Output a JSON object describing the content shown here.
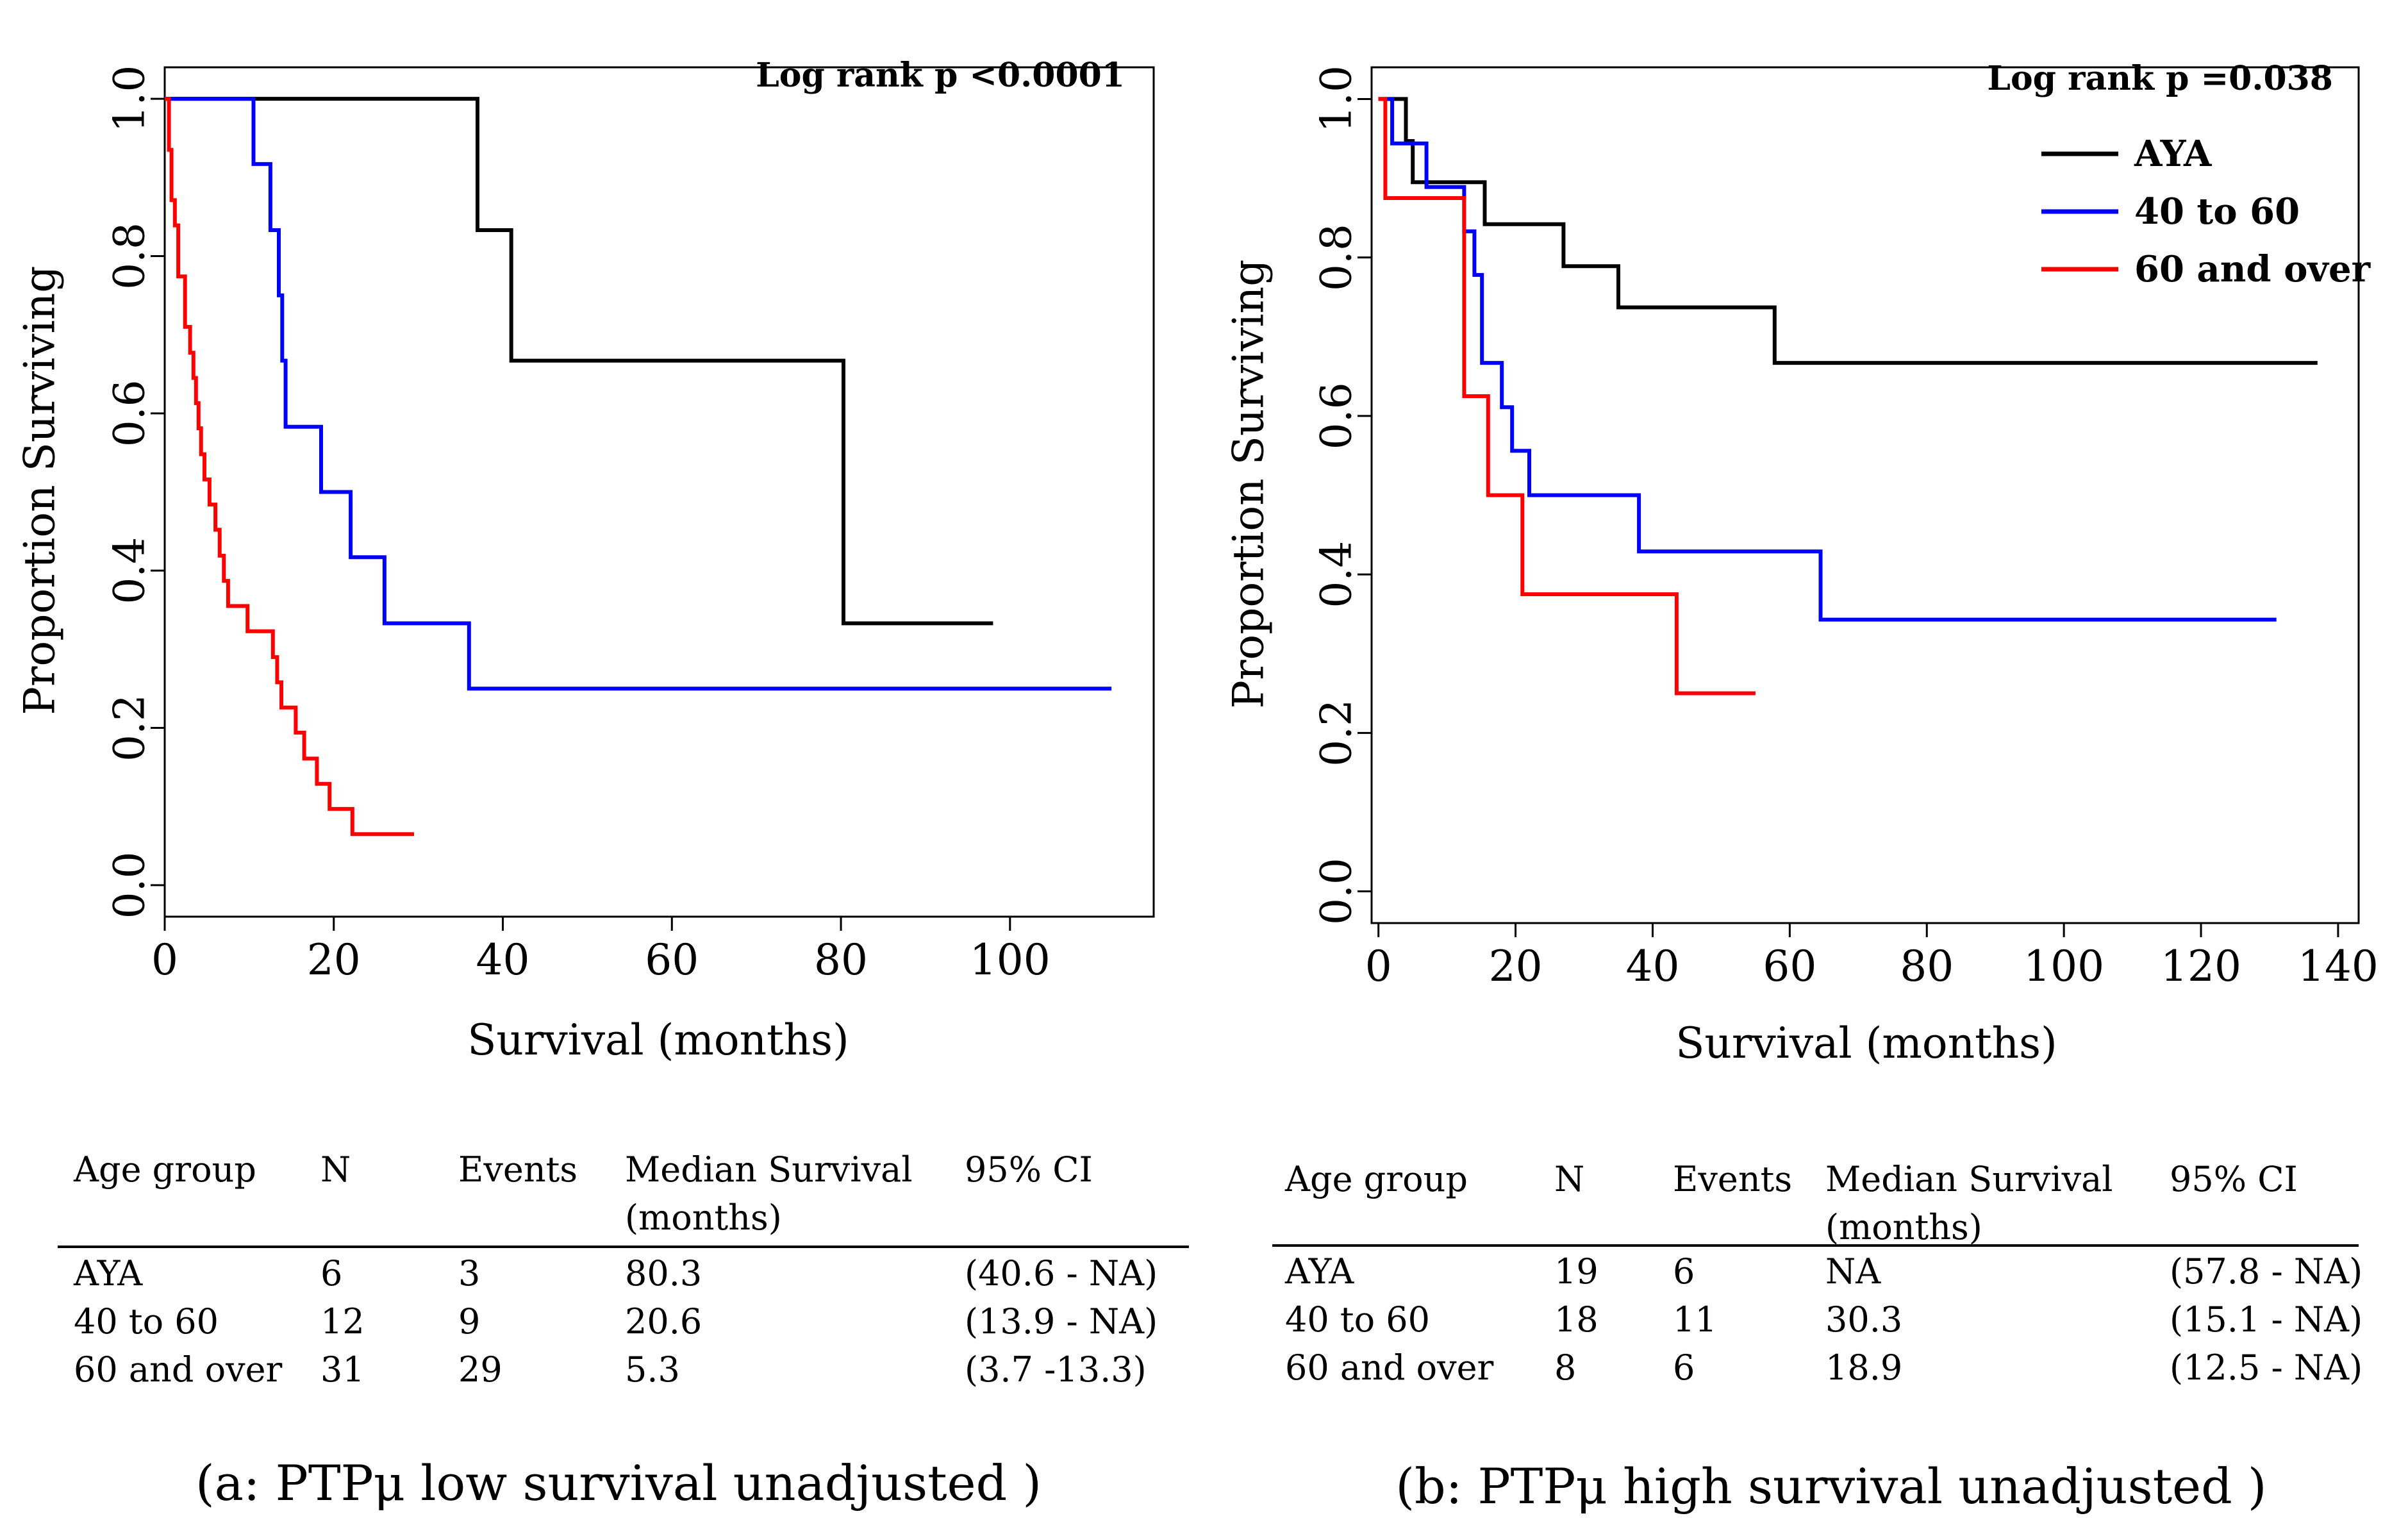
{
  "chart_data": [
    {
      "type": "line",
      "subtype": "kaplan-meier",
      "caption": "(a: PTPμ low survival unadjusted )",
      "xlabel": "Survival (months)",
      "ylabel": "Proportion Surviving",
      "xlim": [
        0,
        117
      ],
      "ylim": [
        -0.04,
        1.04
      ],
      "xticks": [
        0,
        20,
        40,
        60,
        80,
        100
      ],
      "xtick_labels": [
        "0",
        "20",
        "40",
        "60",
        "80",
        "100"
      ],
      "yticks": [
        0.0,
        0.2,
        0.4,
        0.6,
        0.8,
        1.0
      ],
      "ytick_labels": [
        "0.0",
        "0.2",
        "0.4",
        "0.6",
        "0.8",
        "1.0"
      ],
      "annotation": "Log rank p <0.0001",
      "series": [
        {
          "name": "AYA",
          "color": "#000000",
          "points": [
            [
              0,
              1.0
            ],
            [
              37,
              1.0
            ],
            [
              37,
              0.833
            ],
            [
              41,
              0.833
            ],
            [
              41,
              0.667
            ],
            [
              80.3,
              0.667
            ],
            [
              80.3,
              0.333
            ],
            [
              98,
              0.333
            ]
          ]
        },
        {
          "name": "40 to 60",
          "color": "#0000ff",
          "points": [
            [
              0,
              1.0
            ],
            [
              10.5,
              1.0
            ],
            [
              10.5,
              0.917
            ],
            [
              12.5,
              0.917
            ],
            [
              12.5,
              0.833
            ],
            [
              13.5,
              0.833
            ],
            [
              13.5,
              0.75
            ],
            [
              13.9,
              0.75
            ],
            [
              13.9,
              0.667
            ],
            [
              14.3,
              0.667
            ],
            [
              14.3,
              0.583
            ],
            [
              18.5,
              0.583
            ],
            [
              18.5,
              0.5
            ],
            [
              22,
              0.5
            ],
            [
              22,
              0.417
            ],
            [
              26,
              0.417
            ],
            [
              26,
              0.333
            ],
            [
              36,
              0.333
            ],
            [
              36,
              0.25
            ],
            [
              112,
              0.25
            ]
          ]
        },
        {
          "name": "60 and over",
          "color": "#ff0000",
          "points": [
            [
              0,
              1.0
            ],
            [
              0.5,
              1.0
            ],
            [
              0.5,
              0.935
            ],
            [
              0.8,
              0.935
            ],
            [
              0.8,
              0.871
            ],
            [
              1.2,
              0.871
            ],
            [
              1.2,
              0.839
            ],
            [
              1.6,
              0.839
            ],
            [
              1.6,
              0.774
            ],
            [
              2.4,
              0.774
            ],
            [
              2.4,
              0.71
            ],
            [
              3.0,
              0.71
            ],
            [
              3.0,
              0.677
            ],
            [
              3.4,
              0.677
            ],
            [
              3.4,
              0.645
            ],
            [
              3.7,
              0.645
            ],
            [
              3.7,
              0.613
            ],
            [
              4.0,
              0.613
            ],
            [
              4.0,
              0.581
            ],
            [
              4.3,
              0.581
            ],
            [
              4.3,
              0.548
            ],
            [
              4.7,
              0.548
            ],
            [
              4.7,
              0.516
            ],
            [
              5.3,
              0.516
            ],
            [
              5.3,
              0.484
            ],
            [
              6.0,
              0.484
            ],
            [
              6.0,
              0.452
            ],
            [
              6.5,
              0.452
            ],
            [
              6.5,
              0.419
            ],
            [
              7.0,
              0.419
            ],
            [
              7.0,
              0.387
            ],
            [
              7.5,
              0.387
            ],
            [
              7.5,
              0.355
            ],
            [
              9.8,
              0.355
            ],
            [
              9.8,
              0.323
            ],
            [
              12.8,
              0.323
            ],
            [
              12.8,
              0.29
            ],
            [
              13.3,
              0.29
            ],
            [
              13.3,
              0.258
            ],
            [
              13.8,
              0.258
            ],
            [
              13.8,
              0.226
            ],
            [
              15.5,
              0.226
            ],
            [
              15.5,
              0.194
            ],
            [
              16.5,
              0.194
            ],
            [
              16.5,
              0.161
            ],
            [
              18.0,
              0.161
            ],
            [
              18.0,
              0.129
            ],
            [
              19.5,
              0.129
            ],
            [
              19.5,
              0.097
            ],
            [
              22.2,
              0.097
            ],
            [
              22.2,
              0.065
            ],
            [
              29.5,
              0.065
            ]
          ]
        }
      ],
      "table": {
        "headers": [
          "Age group",
          "N",
          "Events",
          "Median Survival",
          "95% CI"
        ],
        "header_sub": "(months)",
        "rows": [
          [
            "AYA",
            "6",
            "3",
            "80.3",
            "(40.6 - NA)"
          ],
          [
            "40 to 60",
            "12",
            "9",
            "20.6",
            "(13.9 - NA)"
          ],
          [
            "60 and over",
            "31",
            "29",
            "5.3",
            "(3.7 -13.3)"
          ]
        ]
      }
    },
    {
      "type": "line",
      "subtype": "kaplan-meier",
      "caption": "(b: PTPμ high survival unadjusted )",
      "xlabel": "Survival (months)",
      "ylabel": "Proportion Surviving",
      "xlim": [
        -1,
        143
      ],
      "ylim": [
        -0.04,
        1.04
      ],
      "xticks": [
        0,
        20,
        40,
        60,
        80,
        100,
        120,
        140
      ],
      "xtick_labels": [
        "0",
        "20",
        "40",
        "60",
        "80",
        "100",
        "120",
        "140"
      ],
      "yticks": [
        0.0,
        0.2,
        0.4,
        0.6,
        0.8,
        1.0
      ],
      "ytick_labels": [
        "0.0",
        "0.2",
        "0.4",
        "0.6",
        "0.8",
        "1.0"
      ],
      "annotation": "Log rank p =0.038",
      "legend": [
        {
          "label": "AYA",
          "color": "#000000"
        },
        {
          "label": "40 to 60",
          "color": "#0000ff"
        },
        {
          "label": "60 and over",
          "color": "#ff0000"
        }
      ],
      "series": [
        {
          "name": "AYA",
          "color": "#000000",
          "points": [
            [
              0,
              1.0
            ],
            [
              4,
              1.0
            ],
            [
              4,
              0.947
            ],
            [
              5,
              0.947
            ],
            [
              5,
              0.895
            ],
            [
              15.5,
              0.895
            ],
            [
              15.5,
              0.842
            ],
            [
              27,
              0.842
            ],
            [
              27,
              0.789
            ],
            [
              35,
              0.789
            ],
            [
              35,
              0.737
            ],
            [
              57.8,
              0.737
            ],
            [
              57.8,
              0.667
            ],
            [
              137,
              0.667
            ]
          ]
        },
        {
          "name": "40 to 60",
          "color": "#0000ff",
          "points": [
            [
              0,
              1.0
            ],
            [
              2,
              1.0
            ],
            [
              2,
              0.944
            ],
            [
              7,
              0.944
            ],
            [
              7,
              0.889
            ],
            [
              12.5,
              0.889
            ],
            [
              12.5,
              0.833
            ],
            [
              14,
              0.833
            ],
            [
              14,
              0.778
            ],
            [
              15.1,
              0.778
            ],
            [
              15.1,
              0.667
            ],
            [
              18,
              0.667
            ],
            [
              18,
              0.611
            ],
            [
              19.5,
              0.611
            ],
            [
              19.5,
              0.556
            ],
            [
              22,
              0.556
            ],
            [
              22,
              0.5
            ],
            [
              38,
              0.5
            ],
            [
              38,
              0.429
            ],
            [
              64.5,
              0.429
            ],
            [
              64.5,
              0.343
            ],
            [
              131,
              0.343
            ]
          ]
        },
        {
          "name": "60 and over",
          "color": "#ff0000",
          "points": [
            [
              0,
              1.0
            ],
            [
              1,
              1.0
            ],
            [
              1,
              0.875
            ],
            [
              12.5,
              0.875
            ],
            [
              12.5,
              0.625
            ],
            [
              16,
              0.625
            ],
            [
              16,
              0.5
            ],
            [
              21,
              0.5
            ],
            [
              21,
              0.375
            ],
            [
              43.5,
              0.375
            ],
            [
              43.5,
              0.25
            ],
            [
              55,
              0.25
            ]
          ]
        }
      ],
      "table": {
        "headers": [
          "Age group",
          "N",
          "Events",
          "Median Survival",
          "95% CI"
        ],
        "header_sub": "(months)",
        "rows": [
          [
            "AYA",
            "19",
            "6",
            "NA",
            "(57.8 - NA)"
          ],
          [
            "40 to 60",
            "18",
            "11",
            "30.3",
            "(15.1 - NA)"
          ],
          [
            "60 and over",
            "8",
            "6",
            "18.9",
            "(12.5 - NA)"
          ]
        ]
      }
    }
  ]
}
